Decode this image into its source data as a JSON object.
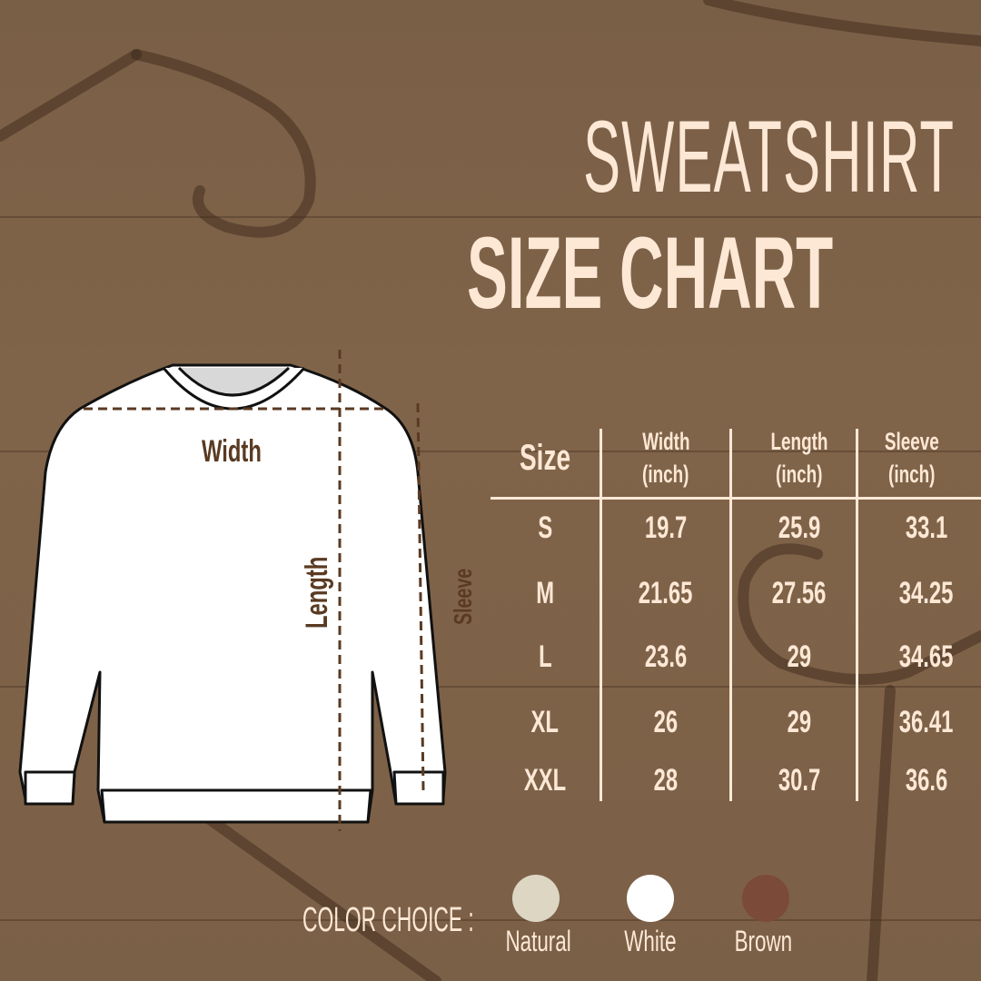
{
  "title": {
    "line1": "SWEATSHIRT",
    "line2": "SIZE CHART"
  },
  "garment_labels": {
    "width": "Width",
    "length": "Length",
    "sleeve": "Sleeve"
  },
  "table": {
    "headers": [
      {
        "label": "Size",
        "unit": ""
      },
      {
        "label": "Width",
        "unit": "(inch)"
      },
      {
        "label": "Length",
        "unit": "(inch)"
      },
      {
        "label": "Sleeve",
        "unit": "(inch)"
      }
    ],
    "rows": [
      [
        "S",
        "19.7",
        "25.9",
        "33.1"
      ],
      [
        "M",
        "21.65",
        "27.56",
        "34.25"
      ],
      [
        "L",
        "23.6",
        "29",
        "34.65"
      ],
      [
        "XL",
        "26",
        "29",
        "36.41"
      ],
      [
        "XXL",
        "28",
        "30.7",
        "36.6"
      ]
    ]
  },
  "color_choice": {
    "label": "COLOR CHOICE :",
    "options": [
      {
        "name": "Natural",
        "color": "#dcd6c2"
      },
      {
        "name": "White",
        "color": "#ffffff"
      },
      {
        "name": "Brown",
        "color": "#7b4a38"
      }
    ]
  },
  "colors": {
    "background": "#7d6249",
    "text": "#fde8d6",
    "measure": "#5a3a22"
  }
}
